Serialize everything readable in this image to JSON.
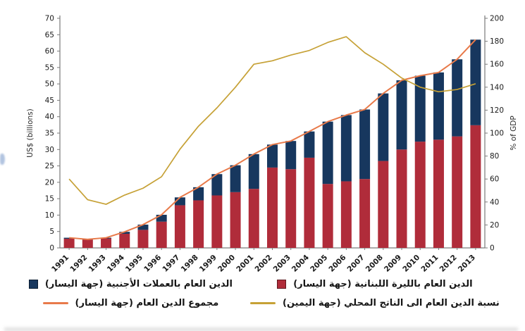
{
  "chart_data": {
    "type": "bar",
    "subtype": "stacked-bars-with-overlay-lines",
    "title": "",
    "grid": false,
    "legend_position": "bottom",
    "categories": [
      "1991",
      "1992",
      "1993",
      "1994",
      "1995",
      "1996",
      "1997",
      "1998",
      "1999",
      "2000",
      "2001",
      "2002",
      "2003",
      "2004",
      "2005",
      "2006",
      "2007",
      "2008",
      "2009",
      "2010",
      "2011",
      "2012",
      "2013"
    ],
    "series": [
      {
        "name": "الدين العام بالليرة اللبنانية (جهة اليسار)",
        "role": "bar",
        "stack_order": 0,
        "axis": "left",
        "color": "#b02c3a",
        "values": [
          2.8,
          2.5,
          2.9,
          4.3,
          5.5,
          8.0,
          13.0,
          14.5,
          16.0,
          17.0,
          18.0,
          24.5,
          24.0,
          27.5,
          19.5,
          20.3,
          21.0,
          26.5,
          30.0,
          32.4,
          33.0,
          34.0,
          37.4
        ]
      },
      {
        "name": "الدين العام بالعملات الأجنبية (جهة اليسار)",
        "role": "bar",
        "stack_order": 1,
        "axis": "left",
        "color": "#17375e",
        "values": [
          0.3,
          0.1,
          0.2,
          0.6,
          1.6,
          2.1,
          2.4,
          4.0,
          6.5,
          8.2,
          10.6,
          7.0,
          8.6,
          8.0,
          19.0,
          20.2,
          21.2,
          20.6,
          21.1,
          20.1,
          20.5,
          23.5,
          26.1
        ]
      },
      {
        "name": "مجموع الدين العام (جهة اليسار)",
        "role": "line",
        "axis": "left",
        "color": "#e87a4a",
        "values": [
          3.1,
          2.6,
          3.1,
          4.9,
          7.1,
          10.1,
          15.4,
          18.5,
          22.5,
          25.2,
          28.6,
          31.5,
          32.6,
          35.5,
          38.5,
          40.5,
          42.2,
          47.1,
          51.1,
          52.5,
          53.5,
          57.5,
          63.5
        ]
      },
      {
        "name": "نسبة الدين العام الى الناتج المحلي (جهة اليمين)",
        "role": "line",
        "axis": "right",
        "color": "#c6a136",
        "values": [
          60,
          42,
          38,
          46,
          52,
          62,
          86,
          106,
          122,
          140,
          160,
          163,
          168,
          172,
          179,
          184,
          170,
          160,
          148,
          140,
          136,
          138,
          143
        ]
      }
    ],
    "left_axis": {
      "label": "US$ (billions)",
      "min": 0,
      "max": 70,
      "step": 5
    },
    "right_axis": {
      "label": "% of GDP",
      "min": 0,
      "max": 200,
      "step": 20
    },
    "legend": [
      {
        "label": "الدين العام بالعملات الأجنبية (جهة اليسار)",
        "marker": "square",
        "color": "#17375e"
      },
      {
        "label": "الدين العام بالليرة اللبنانية (جهة اليسار)",
        "marker": "square",
        "color": "#b02c3a"
      },
      {
        "label": "مجموع الدين العام (جهة اليسار)",
        "marker": "line",
        "color": "#e87a4a"
      },
      {
        "label": "نسبة الدين العام الى الناتج المحلي (جهة اليمين)",
        "marker": "line",
        "color": "#c6a136"
      }
    ]
  }
}
